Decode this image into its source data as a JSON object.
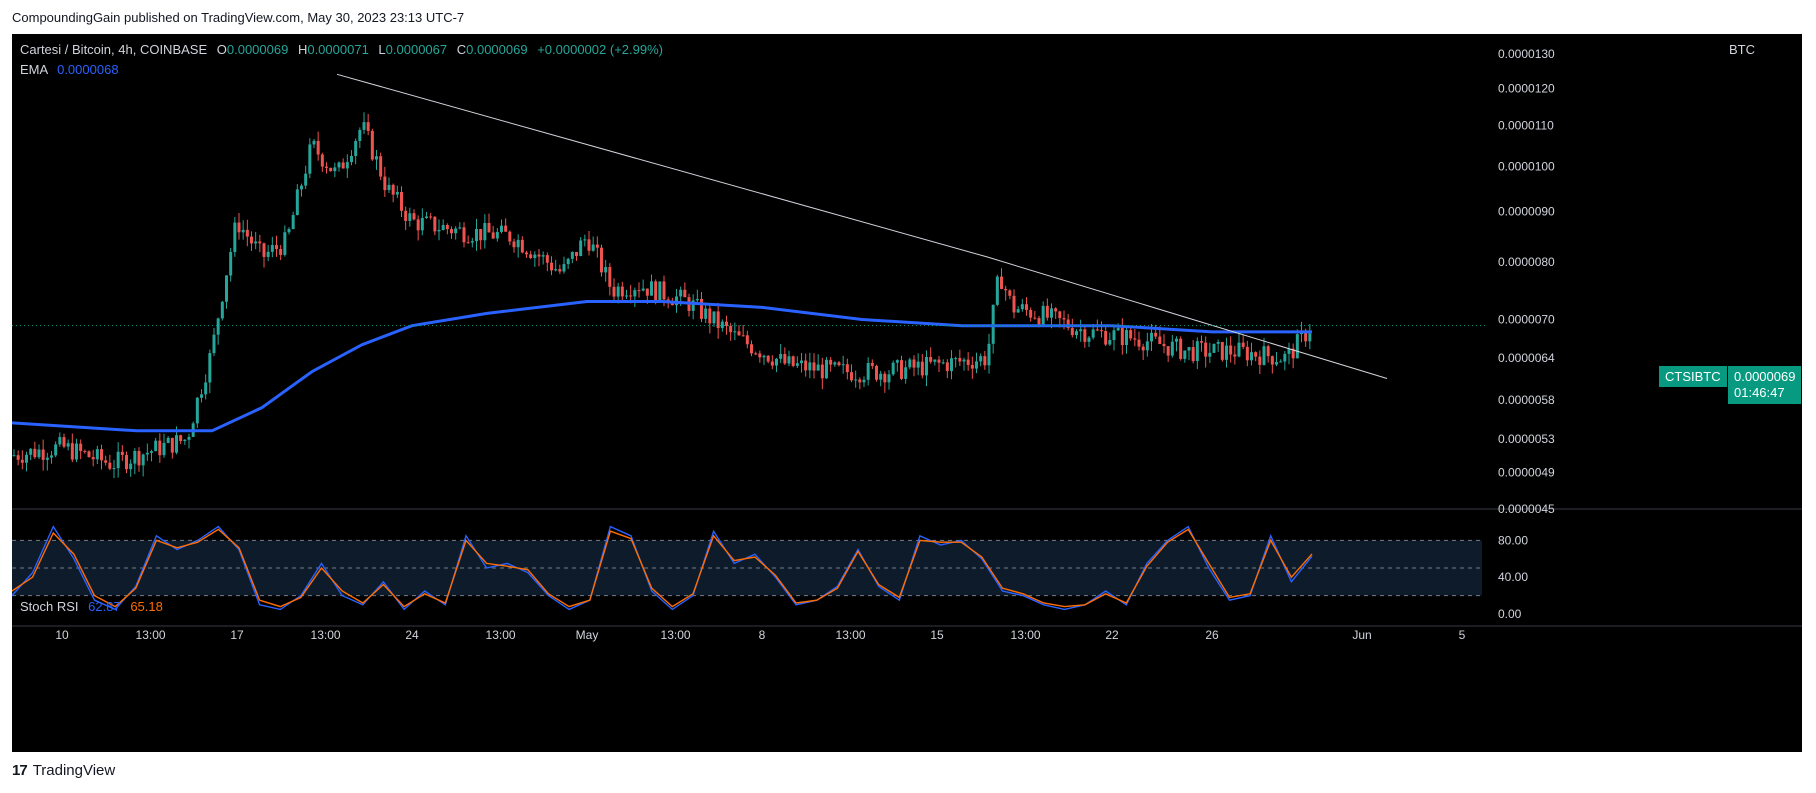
{
  "header": {
    "published": "CompoundingGain published on TradingView.com, May 30, 2023 23:13 UTC-7"
  },
  "legend": {
    "symbol": "Cartesi / Bitcoin, 4h, COINBASE",
    "o_label": "O",
    "o": "0.0000069",
    "h_label": "H",
    "h": "0.0000071",
    "l_label": "L",
    "l": "0.0000067",
    "c_label": "C",
    "c": "0.0000069",
    "change": "+0.0000002 (+2.99%)",
    "ema_label": "EMA",
    "ema_value": "0.0000068"
  },
  "stoch": {
    "label": "Stoch RSI",
    "k": "62.87",
    "d": "65.18"
  },
  "axis": {
    "unit": "BTC",
    "price_ticks": [
      "0.0000130",
      "0.0000120",
      "0.0000110",
      "0.0000100",
      "0.0000090",
      "0.0000080",
      "0.0000070",
      "0.0000064",
      "0.0000058",
      "0.0000053",
      "0.0000049",
      "0.0000045"
    ],
    "stoch_ticks": [
      "80.00",
      "40.00",
      "0.00"
    ],
    "x_ticks": [
      "10",
      "13:00",
      "17",
      "13:00",
      "24",
      "13:00",
      "May",
      "13:00",
      "8",
      "13:00",
      "15",
      "13:00",
      "22",
      "26",
      "Jun",
      "5"
    ]
  },
  "last_price": {
    "ticker": "CTSIBTC",
    "price": "0.0000069",
    "countdown": "01:46:47"
  },
  "footer": {
    "brand": "TradingView"
  },
  "colors": {
    "up": "#26a69a",
    "down": "#ef5350",
    "ema": "#2962ff",
    "k": "#2962ff",
    "d": "#ff6d00",
    "badge": "#089981"
  },
  "chart_data": [
    {
      "type": "candlestick",
      "title": "Cartesi / Bitcoin, 4h, COINBASE",
      "ylabel": "BTC",
      "y_scale": "log",
      "ylim": [
        4.5e-06,
        1.3e-05
      ],
      "x_ticks": [
        "10",
        "13:00",
        "17",
        "13:00",
        "24",
        "13:00",
        "May",
        "13:00",
        "8",
        "13:00",
        "15",
        "13:00",
        "22",
        "26",
        "Jun",
        "5"
      ],
      "close_trend": [
        {
          "d": "Apr 8",
          "v": 5.1e-06
        },
        {
          "d": "Apr 10",
          "v": 5.2e-06
        },
        {
          "d": "Apr 12",
          "v": 5e-06
        },
        {
          "d": "Apr 14",
          "v": 5.2e-06
        },
        {
          "d": "Apr 15",
          "v": 5.3e-06
        },
        {
          "d": "Apr 16",
          "v": 6.5e-06
        },
        {
          "d": "Apr 17",
          "v": 8.8e-06
        },
        {
          "d": "Apr 18",
          "v": 8.1e-06
        },
        {
          "d": "Apr 19",
          "v": 8.4e-06
        },
        {
          "d": "Apr 20",
          "v": 1.05e-05
        },
        {
          "d": "Apr 21",
          "v": 9.8e-06
        },
        {
          "d": "Apr 22",
          "v": 1.1e-05
        },
        {
          "d": "Apr 23",
          "v": 9.5e-06
        },
        {
          "d": "Apr 24",
          "v": 8.8e-06
        },
        {
          "d": "Apr 26",
          "v": 8.6e-06
        },
        {
          "d": "Apr 28",
          "v": 8.5e-06
        },
        {
          "d": "Apr 30",
          "v": 7.8e-06
        },
        {
          "d": "May 1",
          "v": 8.5e-06
        },
        {
          "d": "May 2",
          "v": 7.5e-06
        },
        {
          "d": "May 3",
          "v": 7.6e-06
        },
        {
          "d": "May 5",
          "v": 7.3e-06
        },
        {
          "d": "May 7",
          "v": 6.7e-06
        },
        {
          "d": "May 9",
          "v": 6.3e-06
        },
        {
          "d": "May 11",
          "v": 6.2e-06
        },
        {
          "d": "May 13",
          "v": 6.2e-06
        },
        {
          "d": "May 15",
          "v": 6.3e-06
        },
        {
          "d": "May 17",
          "v": 6.4e-06
        },
        {
          "d": "May 17 12h",
          "v": 7.8e-06
        },
        {
          "d": "May 18",
          "v": 7.2e-06
        },
        {
          "d": "May 19",
          "v": 7.1e-06
        },
        {
          "d": "May 21",
          "v": 6.8e-06
        },
        {
          "d": "May 23",
          "v": 6.7e-06
        },
        {
          "d": "May 25",
          "v": 6.5e-06
        },
        {
          "d": "May 27",
          "v": 6.5e-06
        },
        {
          "d": "May 29",
          "v": 6.4e-06
        },
        {
          "d": "May 30",
          "v": 6.9e-06
        }
      ],
      "ema": [
        {
          "d": "Apr 8",
          "v": 5.5e-06
        },
        {
          "d": "Apr 13",
          "v": 5.4e-06
        },
        {
          "d": "Apr 16",
          "v": 5.4e-06
        },
        {
          "d": "Apr 18",
          "v": 5.7e-06
        },
        {
          "d": "Apr 20",
          "v": 6.2e-06
        },
        {
          "d": "Apr 22",
          "v": 6.6e-06
        },
        {
          "d": "Apr 24",
          "v": 6.9e-06
        },
        {
          "d": "Apr 27",
          "v": 7.1e-06
        },
        {
          "d": "May 1",
          "v": 7.3e-06
        },
        {
          "d": "May 4",
          "v": 7.3e-06
        },
        {
          "d": "May 8",
          "v": 7.2e-06
        },
        {
          "d": "May 12",
          "v": 7e-06
        },
        {
          "d": "May 16",
          "v": 6.9e-06
        },
        {
          "d": "May 22",
          "v": 6.9e-06
        },
        {
          "d": "May 26",
          "v": 6.8e-06
        },
        {
          "d": "May 30",
          "v": 6.8e-06
        }
      ],
      "trendline": [
        {
          "d": "Apr 21",
          "v": 1.24e-05
        },
        {
          "d": "May 17",
          "v": 8.1e-06
        },
        {
          "d": "Jun 2",
          "v": 6.1e-06
        }
      ]
    },
    {
      "type": "line",
      "title": "Stoch RSI",
      "ylim": [
        0,
        100
      ],
      "bands": [
        20,
        50,
        80
      ],
      "series": [
        {
          "name": "K",
          "values": [
            20,
            45,
            95,
            60,
            15,
            5,
            30,
            85,
            70,
            80,
            95,
            70,
            10,
            5,
            20,
            55,
            20,
            10,
            35,
            5,
            25,
            10,
            85,
            50,
            55,
            45,
            20,
            5,
            15,
            95,
            85,
            25,
            5,
            20,
            90,
            55,
            65,
            40,
            10,
            15,
            30,
            70,
            30,
            15,
            85,
            75,
            80,
            60,
            25,
            20,
            10,
            5,
            10,
            25,
            10,
            55,
            80,
            95,
            50,
            15,
            20,
            85,
            35,
            62.87
          ]
        },
        {
          "name": "D",
          "values": [
            25,
            40,
            88,
            65,
            20,
            8,
            28,
            80,
            72,
            78,
            92,
            72,
            15,
            8,
            18,
            50,
            25,
            12,
            32,
            8,
            22,
            12,
            80,
            55,
            52,
            48,
            22,
            8,
            15,
            90,
            82,
            28,
            8,
            22,
            85,
            58,
            62,
            42,
            12,
            15,
            28,
            68,
            32,
            18,
            80,
            78,
            78,
            62,
            28,
            22,
            12,
            8,
            10,
            22,
            12,
            52,
            78,
            92,
            55,
            18,
            22,
            80,
            40,
            65.18
          ]
        }
      ]
    }
  ]
}
